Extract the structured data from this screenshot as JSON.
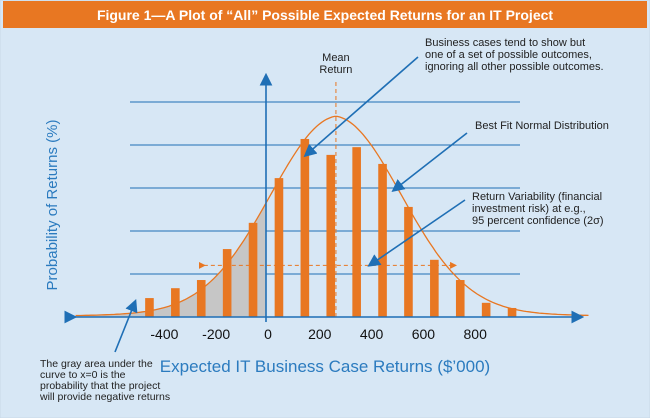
{
  "title": "Figure 1—A Plot of “All” Possible Expected Returns for an IT Project",
  "colors": {
    "title_bar": "#e87722",
    "background": "#d7e7f5",
    "bars": "#e87722",
    "curve": "#e87722",
    "axis": "#1f6fb5",
    "gray_area": "#c6c6c6",
    "label_blue": "#2b7bbf"
  },
  "chart_data": {
    "type": "bar",
    "xlabel": "Expected IT Business Case Returns ($’000)",
    "ylabel": "Probability of Returns (%)",
    "x_ticks": [
      "-400",
      "-200",
      "0",
      "200",
      "400",
      "600",
      "800"
    ],
    "x_tick_values": [
      -400,
      -200,
      0,
      200,
      400,
      600,
      800
    ],
    "xlim": [
      -750,
      1200
    ],
    "ylim": [
      0,
      5.5
    ],
    "grid": "horizontal",
    "x": [
      -450,
      -350,
      -250,
      -150,
      -50,
      50,
      150,
      250,
      350,
      450,
      550,
      650,
      750,
      850,
      950
    ],
    "values": [
      0.44,
      0.67,
      0.86,
      1.58,
      2.19,
      3.23,
      4.14,
      3.77,
      3.95,
      3.56,
      2.56,
      1.33,
      0.86,
      0.33,
      0.21
    ],
    "fit_curve": {
      "type": "normal",
      "mean": 270,
      "peak": 4.67
    },
    "mean_line": {
      "x": 270,
      "label": "Mean Return"
    },
    "variability_range": [
      -240,
      730
    ],
    "shaded_region": {
      "from": "-inf",
      "to": 0
    },
    "annotations": [
      {
        "id": "business",
        "text": [
          "Business cases tend to show but",
          "one of a set of possible outcomes,",
          "ignoring all other possible outcomes."
        ]
      },
      {
        "id": "bestfit",
        "text": [
          "Best Fit Normal Distribution"
        ]
      },
      {
        "id": "variability",
        "text": [
          "Return Variability (financial",
          "investment risk) at e.g.,",
          "95 percent confidence (2σ)"
        ]
      },
      {
        "id": "gray",
        "text": [
          "The gray area under the",
          "curve to x=0 is the",
          "probability that the project",
          "will provide negative returns"
        ]
      }
    ]
  }
}
